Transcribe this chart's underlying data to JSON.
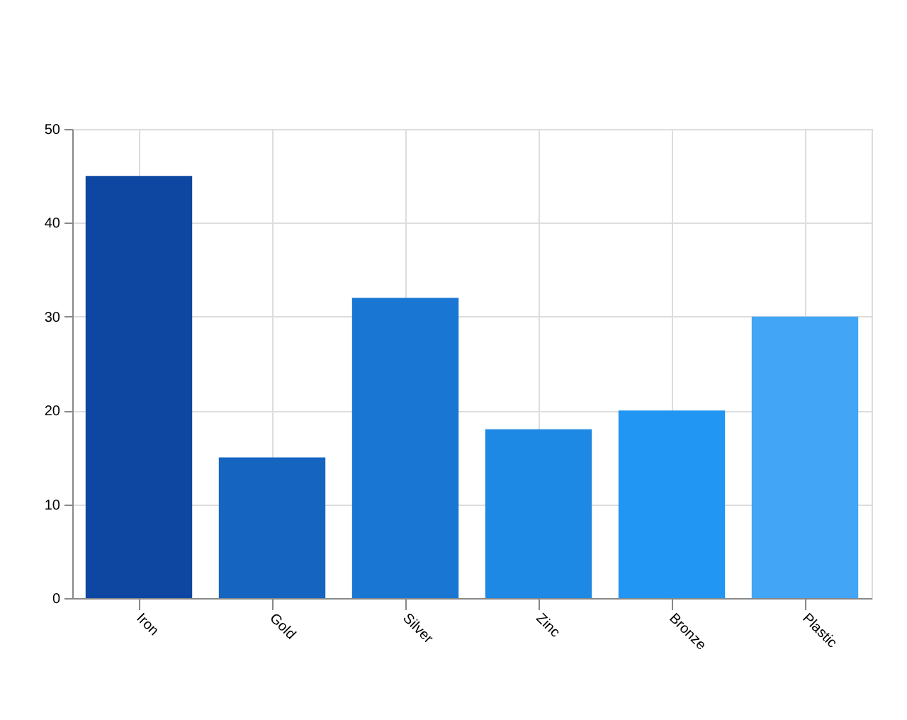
{
  "chart_data": {
    "type": "bar",
    "categories": [
      "Iron",
      "Gold",
      "Silver",
      "Zinc",
      "Bronze",
      "Plastic"
    ],
    "values": [
      45,
      15,
      32,
      18,
      20,
      30
    ],
    "colors": [
      "#0d47a1",
      "#1565c0",
      "#1976d2",
      "#1e88e5",
      "#2196f3",
      "#42a5f5"
    ],
    "ylim": [
      0,
      50
    ],
    "yticks": [
      0,
      10,
      20,
      30,
      40,
      50
    ],
    "grid": true
  }
}
